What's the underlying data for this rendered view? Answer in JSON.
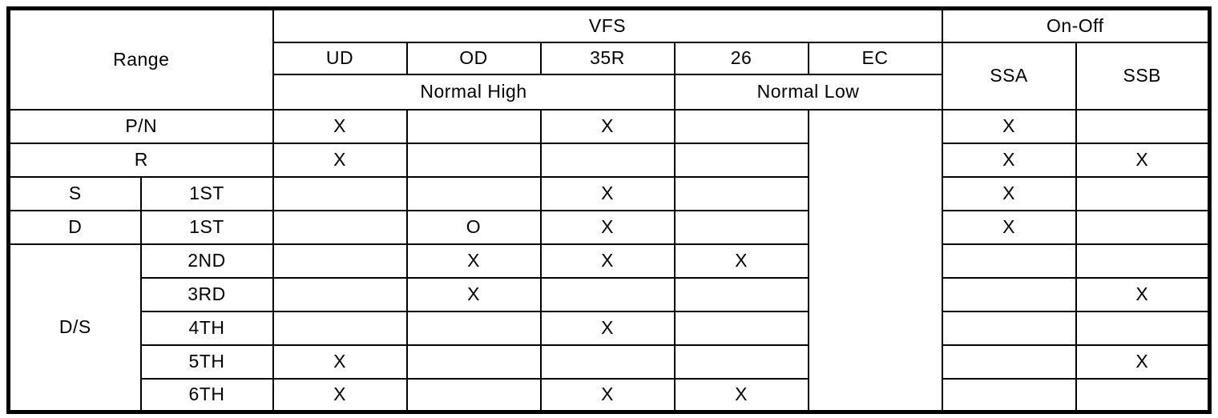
{
  "table": {
    "header": {
      "range": "Range",
      "vfs": "VFS",
      "on_off": "On-Off",
      "columns": [
        "UD",
        "OD",
        "35R",
        "26",
        "EC"
      ],
      "normal_high": "Normal High",
      "normal_low": "Normal Low",
      "ssa": "SSA",
      "ssb": "SSB"
    },
    "ec_merged": "",
    "rows": [
      {
        "range": "P/N",
        "ud": "X",
        "od": "",
        "r35": "X",
        "c26": "",
        "ssa": "X",
        "ssb": ""
      },
      {
        "range": "R",
        "ud": "X",
        "od": "",
        "r35": "",
        "c26": "",
        "ssa": "X",
        "ssb": "X"
      },
      {
        "range": "S",
        "gear": "1ST",
        "ud": "",
        "od": "",
        "r35": "X",
        "c26": "",
        "ssa": "X",
        "ssb": ""
      },
      {
        "range": "D",
        "gear": "1ST",
        "ud": "",
        "od": "O",
        "r35": "X",
        "c26": "",
        "ssa": "X",
        "ssb": ""
      },
      {
        "range": "D/S",
        "gear": "2ND",
        "ud": "",
        "od": "X",
        "r35": "X",
        "c26": "X",
        "ssa": "",
        "ssb": ""
      },
      {
        "gear": "3RD",
        "ud": "",
        "od": "X",
        "r35": "",
        "c26": "",
        "ssa": "",
        "ssb": "X"
      },
      {
        "gear": "4TH",
        "ud": "",
        "od": "",
        "r35": "X",
        "c26": "",
        "ssa": "",
        "ssb": ""
      },
      {
        "gear": "5TH",
        "ud": "X",
        "od": "",
        "r35": "",
        "c26": "",
        "ssa": "",
        "ssb": "X"
      },
      {
        "gear": "6TH",
        "ud": "X",
        "od": "",
        "r35": "X",
        "c26": "X",
        "ssa": "",
        "ssb": ""
      }
    ]
  }
}
